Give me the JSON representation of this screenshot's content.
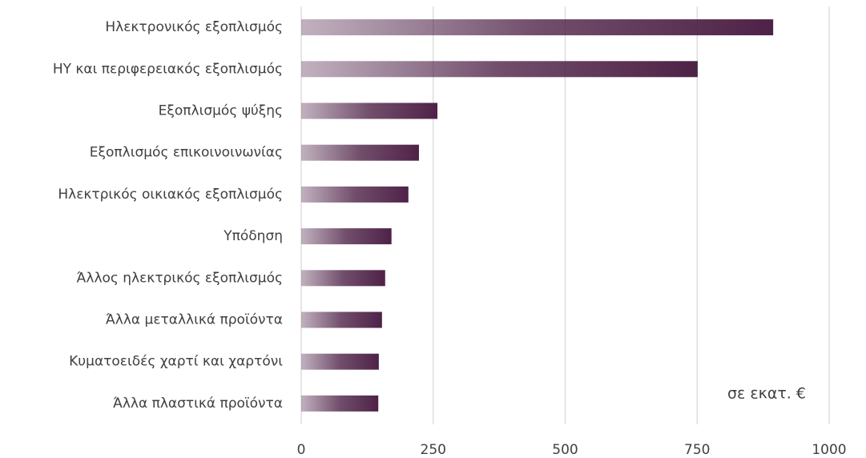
{
  "chart_data": {
    "type": "hbar",
    "categories": [
      "Ηλεκτρονικός εξοπλισμός",
      "ΗΥ και περιφερειακός εξοπλισμός",
      "Εξοπλισμός ψύξης",
      "Εξοπλισμός επικοινοινωνίας",
      "Ηλεκτρικός οικιακός εξοπλισμός",
      "Υπόδηση",
      "Άλλος ηλεκτρικός εξοπλισμός",
      "Άλλα μεταλλικά προϊόντα",
      "Κυματοειδές χαρτί και χαρτόνι",
      "Άλλα πλαστικά προϊόντα"
    ],
    "values": [
      894,
      751,
      258,
      223,
      203,
      171,
      159,
      153,
      147,
      146
    ],
    "color": "#4e2247",
    "xlim": [
      0,
      1000
    ],
    "xticks": [
      0,
      250,
      500,
      750,
      1000
    ],
    "grid": true,
    "annotation": "σε εκατ. €"
  }
}
